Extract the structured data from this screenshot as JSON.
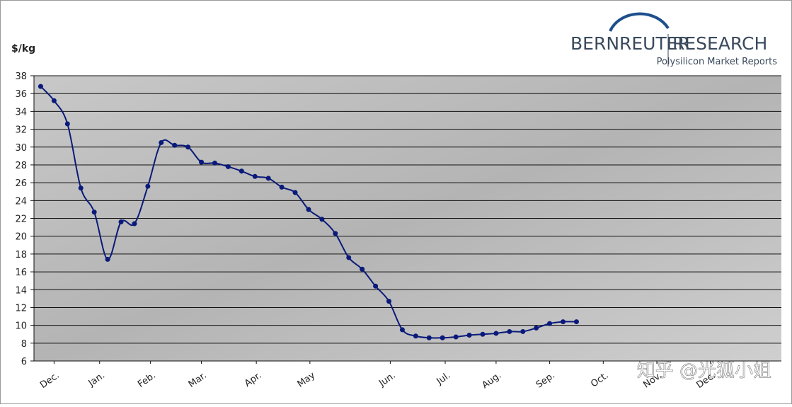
{
  "chart_data": {
    "type": "line",
    "y_label": "$/kg",
    "brand": "BERNREUTER",
    "brand_second": "RESEARCH",
    "brand_subtitle": "Polysilicon Market Reports",
    "watermark": "知乎 @光狐小姐",
    "x": [
      0,
      1,
      2,
      3,
      4,
      5,
      6,
      7,
      8,
      9,
      10,
      11,
      12,
      13,
      14,
      15,
      16,
      17,
      18,
      19,
      20,
      21,
      22,
      23,
      24,
      25,
      26,
      27,
      28,
      29,
      30,
      31,
      32,
      33,
      34,
      35,
      36,
      37,
      38,
      39,
      40
    ],
    "series": [
      {
        "color": "#0a1a7a",
        "values": [
          36.8,
          35.2,
          32.6,
          25.4,
          22.7,
          17.4,
          21.6,
          21.4,
          25.6,
          30.5,
          30.2,
          30.0,
          28.3,
          28.2,
          27.8,
          27.3,
          26.7,
          26.5,
          25.5,
          24.9,
          23.0,
          21.9,
          20.3,
          17.6,
          16.3,
          14.4,
          12.7,
          9.5,
          8.8,
          8.6,
          8.6,
          8.7,
          8.9,
          9.0,
          9.1,
          9.3,
          9.3,
          9.7,
          10.2,
          10.4,
          10.4
        ]
      }
    ],
    "xlim": [
      -0.5,
      55.3
    ],
    "xticks": [
      {
        "value": 1,
        "label": "Dec."
      },
      {
        "value": 4.4,
        "label": "Jan."
      },
      {
        "value": 8.2,
        "label": "Feb."
      },
      {
        "value": 12,
        "label": "Mar."
      },
      {
        "value": 16.1,
        "label": "Apr."
      },
      {
        "value": 20.1,
        "label": "May"
      },
      {
        "value": 26.1,
        "label": "Jun."
      },
      {
        "value": 30.2,
        "label": "Jul."
      },
      {
        "value": 34,
        "label": "Aug."
      },
      {
        "value": 38,
        "label": "Sep."
      },
      {
        "value": 42,
        "label": "Oct."
      },
      {
        "value": 46,
        "label": "Nov."
      },
      {
        "value": 50,
        "label": "Dec."
      }
    ],
    "ylim": [
      6,
      38
    ],
    "yticks": [
      6,
      8,
      10,
      12,
      14,
      16,
      18,
      20,
      22,
      24,
      26,
      28,
      30,
      32,
      34,
      36,
      38
    ],
    "grid": true
  }
}
